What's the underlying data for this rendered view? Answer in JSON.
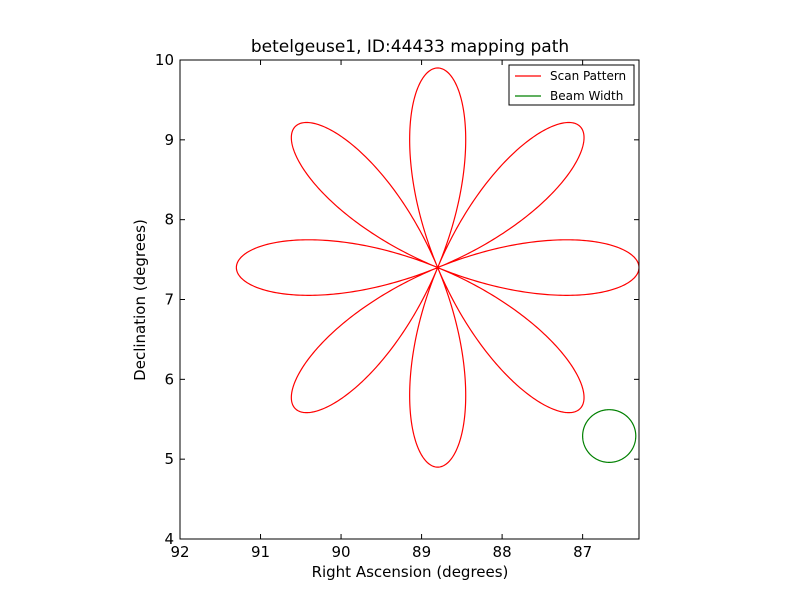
{
  "chart_data": {
    "type": "line",
    "title": "betelgeuse1, ID:44433 mapping path",
    "xlabel": "Right Ascension (degrees)",
    "ylabel": "Declination (degrees)",
    "xlim": [
      92,
      86.3
    ],
    "ylim": [
      4,
      10
    ],
    "x_ticks": [
      92,
      91,
      90,
      89,
      88,
      87
    ],
    "y_ticks": [
      4,
      5,
      6,
      7,
      8,
      9,
      10
    ],
    "x_tick_labels": [
      "92",
      "91",
      "90",
      "89",
      "88",
      "87"
    ],
    "y_tick_labels": [
      "4",
      "5",
      "6",
      "7",
      "8",
      "9",
      "10"
    ],
    "grid": false,
    "legend_placement": "top-right",
    "series": [
      {
        "name": "Scan Pattern",
        "color": "#ff0000",
        "pattern": "rose",
        "center": [
          88.8,
          7.4
        ],
        "radius": 2.5,
        "petals": 8,
        "start": [
          91.35,
          7.4
        ]
      },
      {
        "name": "Beam Width",
        "color": "#008000",
        "pattern": "circle",
        "center": [
          86.67,
          5.29
        ],
        "radius": 0.33
      }
    ]
  }
}
